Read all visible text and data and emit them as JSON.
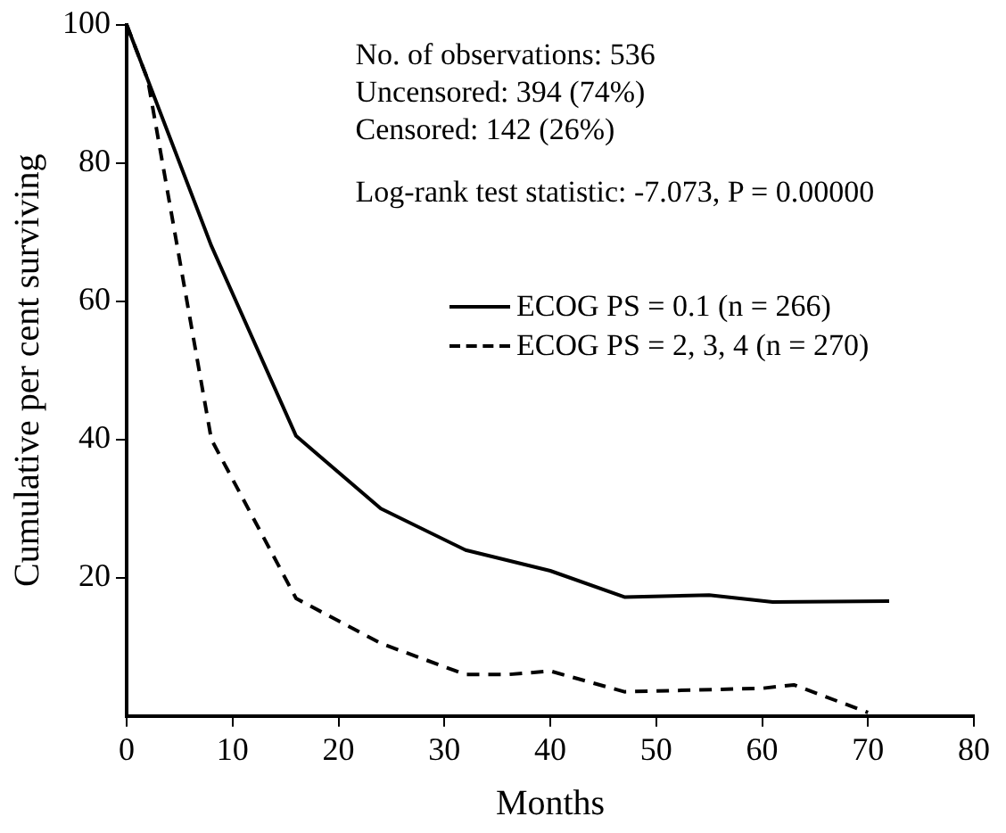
{
  "chart_data": {
    "type": "line",
    "xlabel": "Months",
    "ylabel": "Cumulative per cent surviving",
    "xlim": [
      0,
      80
    ],
    "xticks": [
      0,
      10,
      20,
      30,
      40,
      50,
      60,
      70,
      80
    ],
    "ylim": [
      0,
      100
    ],
    "yticks": [
      20,
      40,
      60,
      80,
      100
    ],
    "grid": false,
    "legend": "top right",
    "marker": "none",
    "annotations": [
      "No. of observations: 536",
      "Uncensored: 394 (74%)",
      "Censored: 142 (26%)",
      "Log-rank test statistic: -7.073, P = 0.00000"
    ],
    "series": [
      {
        "name": "ECOG PS = 0.1 (n = 266)",
        "color": "#000000",
        "line_style": "solid",
        "x": [
          0,
          8,
          16,
          24,
          32,
          40,
          47,
          55,
          61,
          72
        ],
        "values": [
          100,
          68,
          40.5,
          30,
          24,
          21,
          17.2,
          17.5,
          16.5,
          16.6
        ]
      },
      {
        "name": "ECOG PS = 2, 3, 4 (n = 270)",
        "color": "#000000",
        "line_style": "dashed",
        "x": [
          0,
          2,
          8,
          16,
          24,
          32,
          36,
          40,
          47,
          60,
          63,
          70
        ],
        "values": [
          100,
          92,
          40,
          17,
          10.5,
          6,
          6,
          6.5,
          3.5,
          4,
          4.5,
          0.5
        ]
      }
    ]
  }
}
